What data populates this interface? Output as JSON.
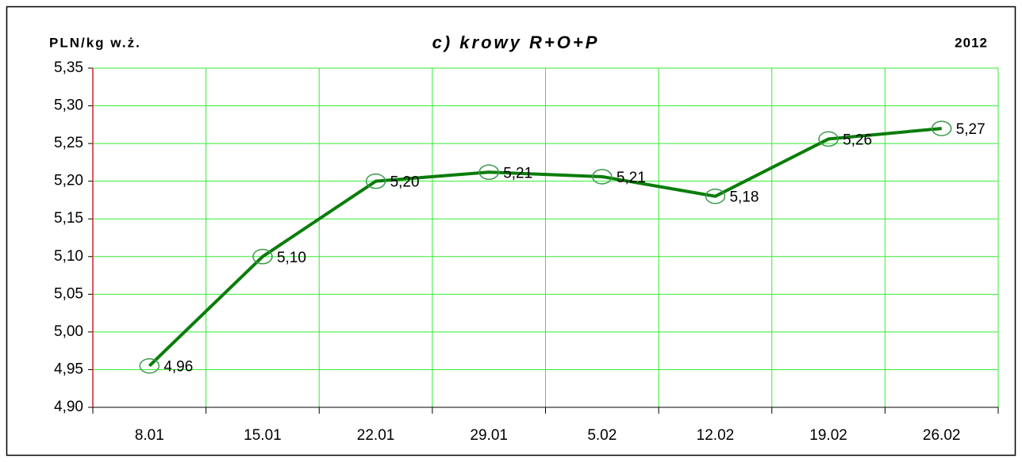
{
  "chart_data": {
    "type": "line",
    "title": "c) krowy R+O+P",
    "y_axis_label": "PLN/kg w.ż.",
    "annotation": "2012",
    "categories": [
      "8.01",
      "15.01",
      "22.01",
      "29.01",
      "5.02",
      "12.02",
      "19.02",
      "26.02"
    ],
    "series": [
      {
        "name": "krowy R+O+P",
        "color": "#0a7d0a",
        "values": [
          4.955,
          5.1,
          5.2,
          5.212,
          5.206,
          5.18,
          5.256,
          5.27
        ],
        "value_labels": [
          "4,96",
          "5,10",
          "5,20",
          "5,21",
          "5,21",
          "5,18",
          "5,26",
          "5,27"
        ]
      }
    ],
    "ylim": [
      4.9,
      5.35
    ],
    "yticks": [
      {
        "value": 4.9,
        "label": "4,90"
      },
      {
        "value": 4.95,
        "label": "4,95"
      },
      {
        "value": 5.0,
        "label": "5,00"
      },
      {
        "value": 5.05,
        "label": "5,05"
      },
      {
        "value": 5.1,
        "label": "5,10"
      },
      {
        "value": 5.15,
        "label": "5,15"
      },
      {
        "value": 5.2,
        "label": "5,20"
      },
      {
        "value": 5.25,
        "label": "5,25"
      },
      {
        "value": 5.3,
        "label": "5,30"
      },
      {
        "value": 5.35,
        "label": "5,35"
      }
    ],
    "grid": true,
    "grid_color": "#33ee33"
  }
}
